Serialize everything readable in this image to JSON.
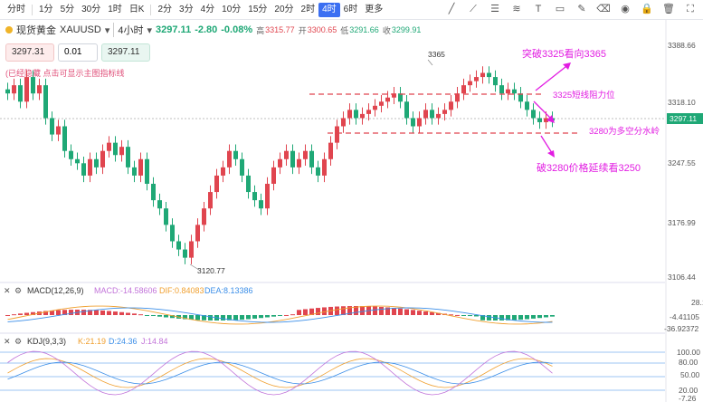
{
  "toolbar": {
    "timeframes": [
      "分时",
      "1分",
      "5分",
      "30分",
      "1时",
      "日K",
      "2分",
      "3分",
      "4分",
      "10分",
      "15分",
      "20分",
      "2时",
      "4时",
      "6时",
      "更多"
    ],
    "active": "4时"
  },
  "symbol": {
    "name": "现货黄金",
    "code": "XAUUSD",
    "period": "4小时",
    "price": "3297.11",
    "change": "-2.80",
    "change_pct": "-0.08%",
    "high_label": "高",
    "high": "3315.77",
    "open_label": "开",
    "open": "3300.65",
    "low_label": "低",
    "low": "3291.66",
    "close_label": "收",
    "close": "3299.91"
  },
  "order": {
    "sell": "3297.31",
    "qty": "0.01",
    "buy": "3297.11"
  },
  "hint": "(已经隐藏 点击可显示主图指标线",
  "price_axis": [
    "3388.66",
    "3318.10",
    "3247.55",
    "3176.99",
    "3106.44"
  ],
  "current_price_tag": "3297.11",
  "annotations": {
    "high_label": "3365",
    "low_label": "3120.77",
    "up_break": "突破3325看向3365",
    "resistance": "3325短线阻力位",
    "pivot": "3280为多空分水岭",
    "down_break": "破3280价格延续看3250"
  },
  "macd": {
    "title": "MACD(12,26,9)",
    "macd": "MACD:-14.58606",
    "dif": "DIF:0.84083",
    "dea": "DEA:8.13386",
    "axis": [
      "28.10142",
      "-4.41105",
      "-36.92372"
    ]
  },
  "kdj": {
    "title": "KDJ(9,3,3)",
    "k": "K:21.19",
    "d": "D:24.36",
    "j": "J:14.84",
    "axis": [
      "100.00",
      "80.00",
      "50.00",
      "20.00",
      "-7.26"
    ]
  },
  "colors": {
    "up": "#e0454f",
    "down": "#1fa876",
    "accent": "#3b6ff2",
    "magenta": "#e21ce2"
  }
}
